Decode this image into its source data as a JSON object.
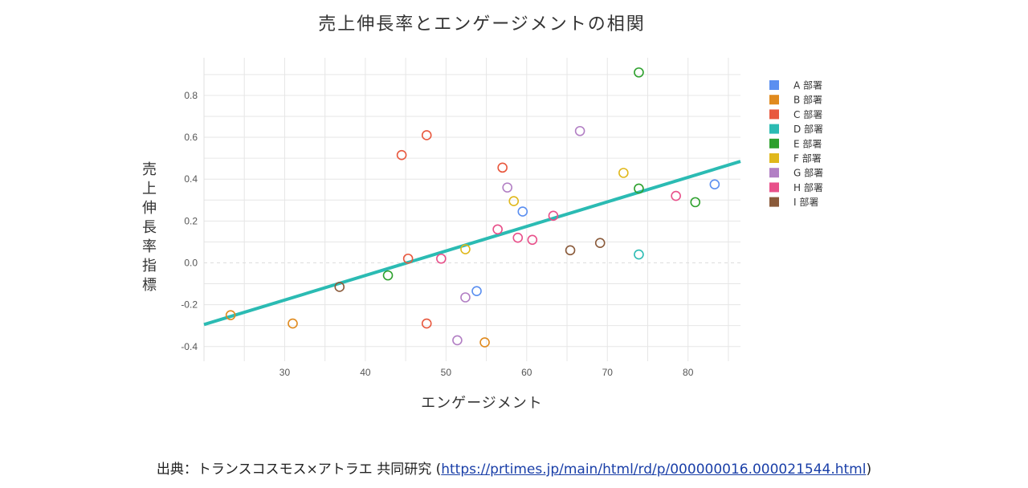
{
  "chart_data": {
    "type": "scatter",
    "title": "売上伸長率とエンゲージメントの相関",
    "xlabel": "エンゲージメント",
    "ylabel": "売上伸長率指標",
    "xlim": [
      20,
      86.5
    ],
    "ylim": [
      -0.47,
      0.98
    ],
    "x_ticks": [
      30,
      40,
      50,
      60,
      70,
      80
    ],
    "y_ticks": [
      -0.4,
      -0.2,
      0.0,
      0.2,
      0.4,
      0.6,
      0.8
    ],
    "grid": true,
    "legend_position": "right",
    "trendline": {
      "color": "#2bbbb3",
      "points": [
        [
          20,
          -0.295
        ],
        [
          86.5,
          0.485
        ]
      ]
    },
    "series": [
      {
        "name": "A 部署",
        "color": "#5b8ff0",
        "points": [
          [
            59.5,
            0.245
          ],
          [
            53.8,
            -0.135
          ],
          [
            83.3,
            0.375
          ]
        ]
      },
      {
        "name": "B 部署",
        "color": "#e08a1e",
        "points": [
          [
            23.3,
            -0.25
          ],
          [
            31.0,
            -0.29
          ],
          [
            54.8,
            -0.38
          ]
        ]
      },
      {
        "name": "C 部署",
        "color": "#e8583e",
        "points": [
          [
            44.5,
            0.515
          ],
          [
            47.6,
            0.61
          ],
          [
            57.0,
            0.455
          ],
          [
            45.3,
            0.02
          ],
          [
            47.6,
            -0.29
          ]
        ]
      },
      {
        "name": "D 部署",
        "color": "#2bbbb3",
        "points": [
          [
            73.9,
            0.04
          ]
        ]
      },
      {
        "name": "E 部署",
        "color": "#2ca02c",
        "points": [
          [
            73.9,
            0.91
          ],
          [
            73.9,
            0.355
          ],
          [
            80.9,
            0.29
          ],
          [
            42.8,
            -0.06
          ]
        ]
      },
      {
        "name": "F 部署",
        "color": "#e0b81c",
        "points": [
          [
            72.0,
            0.43
          ],
          [
            58.4,
            0.295
          ],
          [
            52.4,
            0.065
          ]
        ]
      },
      {
        "name": "G 部署",
        "color": "#b27fc4",
        "points": [
          [
            66.6,
            0.63
          ],
          [
            57.6,
            0.36
          ],
          [
            52.4,
            -0.165
          ],
          [
            51.4,
            -0.37
          ]
        ]
      },
      {
        "name": "H 部署",
        "color": "#e8508a",
        "points": [
          [
            56.4,
            0.16
          ],
          [
            63.3,
            0.225
          ],
          [
            58.9,
            0.12
          ],
          [
            60.7,
            0.11
          ],
          [
            49.4,
            0.02
          ],
          [
            78.5,
            0.32
          ]
        ]
      },
      {
        "name": "I 部署",
        "color": "#8a5a3a",
        "points": [
          [
            36.8,
            -0.115
          ],
          [
            65.4,
            0.06
          ],
          [
            69.1,
            0.095
          ]
        ]
      }
    ]
  },
  "source": {
    "prefix": "出典：トランスコスモス×アトラエ 共同研究 (",
    "url": "https://prtimes.jp/main/html/rd/p/000000016.000021544.html",
    "suffix": ")"
  }
}
